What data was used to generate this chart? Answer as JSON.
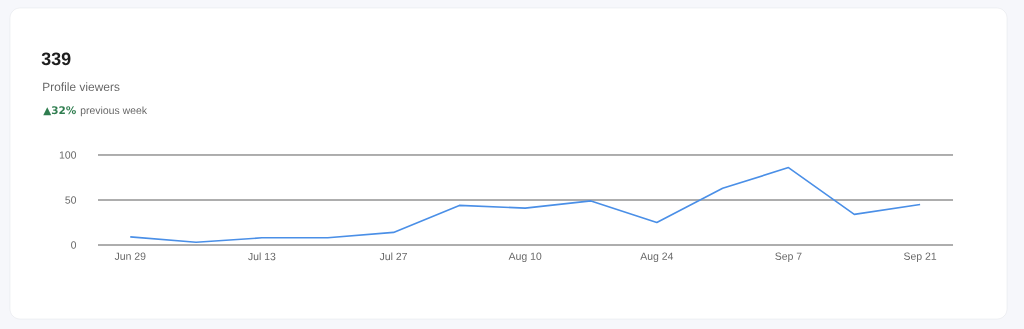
{
  "chart_data": {
    "type": "line",
    "title": "339",
    "subtitle": "Profile viewers",
    "annotations": [
      "▲32%",
      "previous week"
    ],
    "categories": [
      "Jun 29",
      null,
      "Jul 13",
      null,
      "Jul 27",
      null,
      "Aug 10",
      null,
      "Aug 24",
      null,
      "Sep 7",
      null,
      "Sep 21"
    ],
    "series": [
      {
        "color": "#4a8fe7",
        "values": [
          9,
          3,
          8,
          8,
          14,
          44,
          41,
          49,
          25,
          63,
          86,
          34,
          45
        ]
      }
    ],
    "ylim": [
      0,
      100
    ],
    "yticks": [
      0,
      50,
      100
    ],
    "grid": "y",
    "marker": "none",
    "line_style": "solid"
  }
}
